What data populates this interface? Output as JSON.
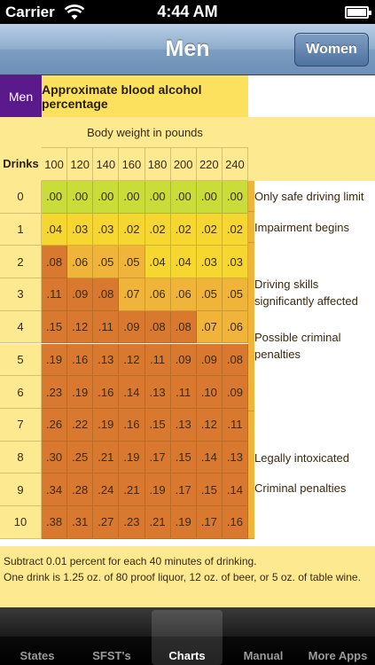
{
  "status_bar": {
    "carrier": "Carrier",
    "time": "4:44 AM"
  },
  "nav": {
    "title": "Men",
    "right_button": "Women"
  },
  "table": {
    "corner_label": "Men",
    "title": "Approximate blood alcohol percentage",
    "weight_header": "Body weight in pounds",
    "drinks_header": "Drinks",
    "weights": [
      "100",
      "120",
      "140",
      "160",
      "180",
      "200",
      "220",
      "240"
    ],
    "rows": [
      {
        "drinks": "0",
        "values": [
          ".00",
          ".00",
          ".00",
          ".00",
          ".00",
          ".00",
          ".00",
          ".00"
        ]
      },
      {
        "drinks": "1",
        "values": [
          ".04",
          ".03",
          ".03",
          ".02",
          ".02",
          ".02",
          ".02",
          ".02"
        ]
      },
      {
        "drinks": "2",
        "values": [
          ".08",
          ".06",
          ".05",
          ".05",
          ".04",
          ".04",
          ".03",
          ".03"
        ]
      },
      {
        "drinks": "3",
        "values": [
          ".11",
          ".09",
          ".08",
          ".07",
          ".06",
          ".06",
          ".05",
          ".05"
        ]
      },
      {
        "drinks": "4",
        "values": [
          ".15",
          ".12",
          ".11",
          ".09",
          ".08",
          ".08",
          ".07",
          ".06"
        ]
      },
      {
        "drinks": "5",
        "values": [
          ".19",
          ".16",
          ".13",
          ".12",
          ".11",
          ".09",
          ".09",
          ".08"
        ]
      },
      {
        "drinks": "6",
        "values": [
          ".23",
          ".19",
          ".16",
          ".14",
          ".13",
          ".11",
          ".10",
          ".09"
        ]
      },
      {
        "drinks": "7",
        "values": [
          ".26",
          ".22",
          ".19",
          ".16",
          ".15",
          ".13",
          ".12",
          ".11"
        ]
      },
      {
        "drinks": "8",
        "values": [
          ".30",
          ".25",
          ".21",
          ".19",
          ".17",
          ".15",
          ".14",
          ".13"
        ]
      },
      {
        "drinks": "9",
        "values": [
          ".34",
          ".28",
          ".24",
          ".21",
          ".19",
          ".17",
          ".15",
          ".14"
        ]
      },
      {
        "drinks": "10",
        "values": [
          ".38",
          ".31",
          ".27",
          ".23",
          ".21",
          ".19",
          ".17",
          ".16"
        ]
      }
    ],
    "legend": {
      "safe": "Only safe driving limit",
      "impairment": "Impairment begins",
      "affected_line1": "Driving skills",
      "affected_line2": "significantly affected",
      "possible_line1": "Possible criminal",
      "possible_line2": "penalties",
      "intoxicated": "Legally intoxicated",
      "criminal": "Criminal penalties"
    },
    "notes": {
      "line1": "Subtract 0.01 percent for each 40 minutes of drinking.",
      "line2": "One drink is 1.25 oz. of 80 proof liquor, 12 oz. of beer, or 5 oz. of table wine."
    },
    "colors": {
      "green": "#c9dc3a",
      "yellow": "#f6d731",
      "light_orange": "#f0b43a",
      "orange": "#e39a32",
      "dark_orange": "#d9782f",
      "header_purple": "#5b1a8c"
    }
  },
  "tabs": [
    {
      "label": "States",
      "icon": "map-icon"
    },
    {
      "label": "SFST's",
      "icon": "test-icon"
    },
    {
      "label": "Charts",
      "icon": "chart-icon",
      "selected": true
    },
    {
      "label": "Manual",
      "icon": "book-icon"
    },
    {
      "label": "More Apps",
      "icon": "apps-icon"
    }
  ]
}
